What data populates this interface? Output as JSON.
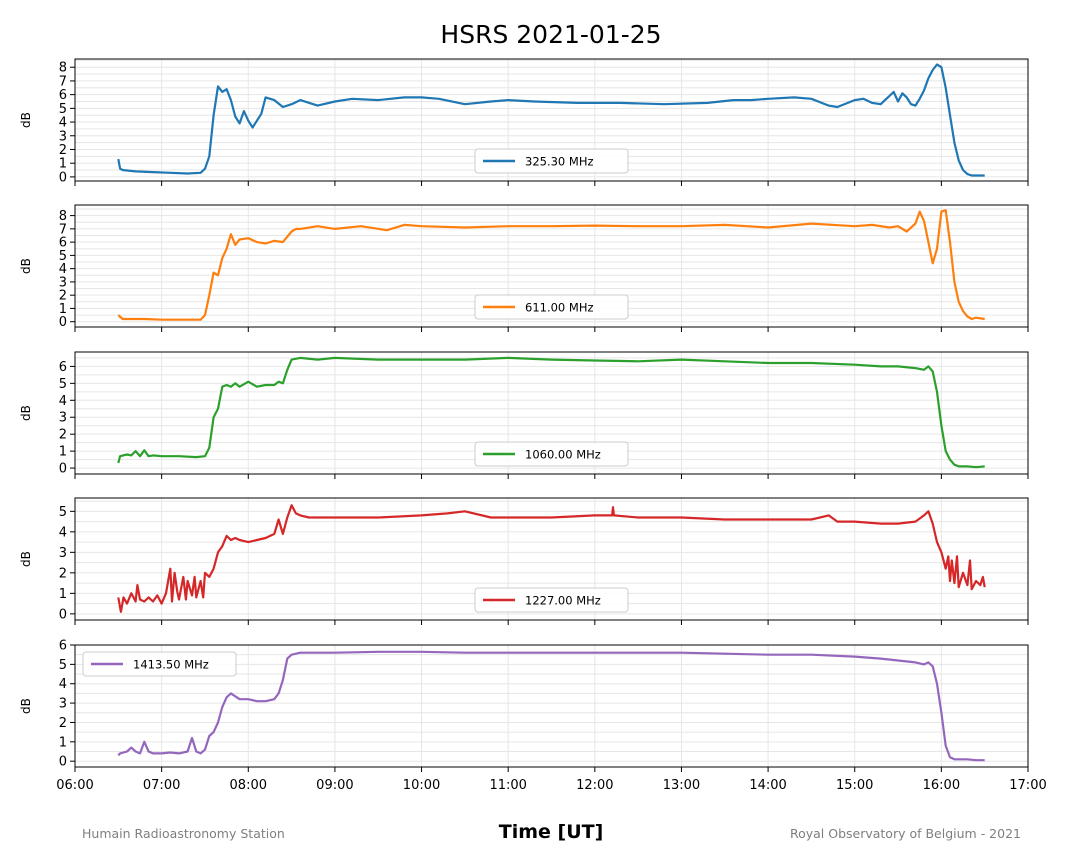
{
  "chart_data": {
    "type": "line",
    "title": "HSRS 2021-01-25",
    "xlabel": "Time [UT]",
    "ylabel": "dB",
    "x_ticks": [
      "06:00",
      "07:00",
      "08:00",
      "09:00",
      "10:00",
      "11:00",
      "12:00",
      "13:00",
      "14:00",
      "15:00",
      "16:00",
      "17:00"
    ],
    "xlim_hours": [
      6,
      17
    ],
    "grid": true,
    "footer_left": "Humain Radioastronomy Station",
    "footer_right": "Royal Observatory of Belgium - 2021",
    "panels": [
      {
        "name": "325.30 MHz",
        "color": "#1f77b4",
        "legend_position": "lower-center",
        "ylim": [
          -0.3,
          8.6
        ],
        "yticks": [
          0,
          1,
          2,
          3,
          4,
          5,
          6,
          7,
          8
        ],
        "x": [
          6.5,
          6.52,
          6.55,
          6.7,
          6.9,
          7.1,
          7.3,
          7.45,
          7.5,
          7.55,
          7.6,
          7.65,
          7.7,
          7.75,
          7.8,
          7.85,
          7.9,
          7.95,
          8.0,
          8.05,
          8.15,
          8.2,
          8.3,
          8.4,
          8.5,
          8.6,
          8.8,
          9.0,
          9.2,
          9.5,
          9.8,
          10.0,
          10.2,
          10.5,
          10.8,
          11.0,
          11.3,
          11.8,
          12.3,
          12.8,
          13.3,
          13.6,
          13.8,
          14.0,
          14.3,
          14.5,
          14.7,
          14.8,
          15.0,
          15.1,
          15.2,
          15.3,
          15.35,
          15.4,
          15.45,
          15.5,
          15.55,
          15.6,
          15.65,
          15.7,
          15.75,
          15.8,
          15.85,
          15.9,
          15.95,
          16.0,
          16.05,
          16.1,
          16.15,
          16.2,
          16.25,
          16.3,
          16.35,
          16.4,
          16.5
        ],
        "y": [
          1.3,
          0.6,
          0.5,
          0.4,
          0.35,
          0.3,
          0.25,
          0.3,
          0.6,
          1.5,
          4.5,
          6.6,
          6.2,
          6.4,
          5.6,
          4.4,
          3.9,
          4.8,
          4.1,
          3.6,
          4.6,
          5.8,
          5.6,
          5.1,
          5.3,
          5.6,
          5.2,
          5.5,
          5.7,
          5.6,
          5.8,
          5.8,
          5.7,
          5.3,
          5.5,
          5.6,
          5.5,
          5.4,
          5.4,
          5.3,
          5.4,
          5.6,
          5.6,
          5.7,
          5.8,
          5.7,
          5.2,
          5.1,
          5.6,
          5.7,
          5.4,
          5.3,
          5.6,
          5.9,
          6.2,
          5.5,
          6.1,
          5.8,
          5.3,
          5.2,
          5.7,
          6.3,
          7.2,
          7.8,
          8.2,
          8.0,
          6.5,
          4.5,
          2.5,
          1.2,
          0.5,
          0.2,
          0.1,
          0.1,
          0.1
        ]
      },
      {
        "name": "611.00 MHz",
        "color": "#ff7f0e",
        "legend_position": "lower-center",
        "ylim": [
          -0.4,
          8.8
        ],
        "yticks": [
          0,
          1,
          2,
          3,
          4,
          5,
          6,
          7,
          8
        ],
        "x": [
          6.5,
          6.55,
          6.8,
          7.0,
          7.2,
          7.45,
          7.5,
          7.55,
          7.6,
          7.65,
          7.7,
          7.75,
          7.8,
          7.85,
          7.9,
          8.0,
          8.1,
          8.2,
          8.3,
          8.4,
          8.5,
          8.55,
          8.6,
          8.8,
          9.0,
          9.3,
          9.6,
          9.8,
          10.0,
          10.5,
          11.0,
          11.5,
          12.0,
          12.5,
          13.0,
          13.5,
          14.0,
          14.5,
          15.0,
          15.2,
          15.4,
          15.5,
          15.6,
          15.7,
          15.75,
          15.8,
          15.85,
          15.9,
          15.95,
          16.0,
          16.05,
          16.1,
          16.15,
          16.2,
          16.25,
          16.3,
          16.35,
          16.4,
          16.5
        ],
        "y": [
          0.5,
          0.2,
          0.2,
          0.15,
          0.15,
          0.15,
          0.5,
          2.0,
          3.7,
          3.5,
          4.8,
          5.5,
          6.6,
          5.8,
          6.2,
          6.3,
          6.0,
          5.9,
          6.1,
          6.0,
          6.8,
          7.0,
          7.0,
          7.2,
          7.0,
          7.2,
          6.9,
          7.3,
          7.2,
          7.1,
          7.2,
          7.2,
          7.25,
          7.2,
          7.2,
          7.3,
          7.1,
          7.4,
          7.2,
          7.3,
          7.1,
          7.2,
          6.8,
          7.4,
          8.3,
          7.6,
          6.0,
          4.4,
          5.5,
          8.3,
          8.4,
          6.0,
          3.0,
          1.5,
          0.8,
          0.4,
          0.2,
          0.3,
          0.2
        ]
      },
      {
        "name": "1060.00 MHz",
        "color": "#2ca02c",
        "legend_position": "lower-center",
        "ylim": [
          -0.35,
          6.85
        ],
        "yticks": [
          0,
          1,
          2,
          3,
          4,
          5,
          6
        ],
        "x": [
          6.5,
          6.52,
          6.6,
          6.65,
          6.7,
          6.75,
          6.8,
          6.85,
          6.9,
          7.0,
          7.2,
          7.4,
          7.5,
          7.55,
          7.6,
          7.65,
          7.7,
          7.75,
          7.8,
          7.85,
          7.9,
          8.0,
          8.1,
          8.2,
          8.3,
          8.35,
          8.4,
          8.45,
          8.5,
          8.6,
          8.8,
          9.0,
          9.5,
          10.0,
          10.5,
          11.0,
          11.5,
          12.0,
          12.5,
          13.0,
          13.5,
          14.0,
          14.5,
          15.0,
          15.3,
          15.5,
          15.7,
          15.8,
          15.85,
          15.9,
          15.95,
          16.0,
          16.05,
          16.1,
          16.15,
          16.2,
          16.3,
          16.4,
          16.5
        ],
        "y": [
          0.3,
          0.7,
          0.8,
          0.75,
          1.0,
          0.7,
          1.05,
          0.7,
          0.75,
          0.7,
          0.7,
          0.65,
          0.7,
          1.2,
          3.0,
          3.5,
          4.8,
          4.9,
          4.8,
          5.0,
          4.8,
          5.1,
          4.8,
          4.9,
          4.9,
          5.1,
          5.0,
          5.8,
          6.4,
          6.5,
          6.4,
          6.5,
          6.4,
          6.4,
          6.4,
          6.5,
          6.4,
          6.35,
          6.3,
          6.4,
          6.3,
          6.2,
          6.2,
          6.1,
          6.0,
          6.0,
          5.9,
          5.8,
          6.0,
          5.7,
          4.5,
          2.5,
          1.0,
          0.5,
          0.2,
          0.1,
          0.1,
          0.05,
          0.1
        ]
      },
      {
        "name": "1227.00 MHz",
        "color": "#d62728",
        "legend_position": "lower-center",
        "ylim": [
          -0.3,
          5.65
        ],
        "yticks": [
          0,
          1,
          2,
          3,
          4,
          5
        ],
        "x": [
          6.5,
          6.53,
          6.56,
          6.6,
          6.65,
          6.7,
          6.72,
          6.75,
          6.8,
          6.85,
          6.9,
          6.95,
          7.0,
          7.05,
          7.1,
          7.12,
          7.15,
          7.18,
          7.2,
          7.25,
          7.28,
          7.3,
          7.35,
          7.38,
          7.4,
          7.45,
          7.48,
          7.5,
          7.55,
          7.6,
          7.65,
          7.7,
          7.75,
          7.8,
          7.85,
          7.9,
          8.0,
          8.1,
          8.2,
          8.3,
          8.35,
          8.4,
          8.45,
          8.5,
          8.55,
          8.6,
          8.7,
          8.9,
          9.2,
          9.5,
          10.0,
          10.3,
          10.5,
          10.8,
          11.0,
          11.5,
          12.0,
          12.2,
          12.21,
          12.22,
          12.5,
          13.0,
          13.5,
          14.0,
          14.5,
          14.7,
          14.8,
          15.0,
          15.3,
          15.5,
          15.7,
          15.8,
          15.85,
          15.9,
          15.95,
          16.0,
          16.05,
          16.08,
          16.1,
          16.12,
          16.15,
          16.18,
          16.2,
          16.25,
          16.3,
          16.33,
          16.35,
          16.4,
          16.45,
          16.48,
          16.5
        ],
        "y": [
          0.8,
          0.1,
          0.8,
          0.5,
          1.0,
          0.6,
          1.4,
          0.7,
          0.6,
          0.8,
          0.6,
          0.9,
          0.5,
          1.0,
          2.2,
          0.6,
          2.0,
          1.1,
          0.7,
          1.8,
          0.7,
          1.6,
          0.9,
          1.8,
          0.8,
          1.6,
          0.8,
          2.0,
          1.8,
          2.2,
          3.0,
          3.3,
          3.8,
          3.6,
          3.7,
          3.6,
          3.5,
          3.6,
          3.7,
          3.9,
          4.6,
          3.9,
          4.7,
          5.3,
          4.9,
          4.8,
          4.7,
          4.7,
          4.7,
          4.7,
          4.8,
          4.9,
          5.0,
          4.7,
          4.7,
          4.7,
          4.8,
          4.8,
          5.2,
          4.8,
          4.7,
          4.7,
          4.6,
          4.6,
          4.6,
          4.8,
          4.5,
          4.5,
          4.4,
          4.4,
          4.5,
          4.8,
          5.0,
          4.4,
          3.5,
          3.0,
          2.2,
          2.8,
          1.6,
          2.6,
          1.5,
          2.8,
          1.3,
          2.0,
          1.4,
          2.6,
          1.2,
          1.6,
          1.4,
          1.8,
          1.3
        ]
      },
      {
        "name": "1413.50 MHz",
        "color": "#9467bd",
        "legend_position": "upper-left",
        "ylim": [
          -0.3,
          6.0
        ],
        "yticks": [
          0,
          1,
          2,
          3,
          4,
          5,
          6
        ],
        "x": [
          6.5,
          6.52,
          6.6,
          6.65,
          6.7,
          6.75,
          6.8,
          6.85,
          6.9,
          7.0,
          7.1,
          7.2,
          7.3,
          7.35,
          7.4,
          7.45,
          7.5,
          7.55,
          7.6,
          7.65,
          7.7,
          7.75,
          7.8,
          7.9,
          8.0,
          8.1,
          8.2,
          8.3,
          8.35,
          8.4,
          8.45,
          8.5,
          8.6,
          8.8,
          9.0,
          9.5,
          10.0,
          10.5,
          11.0,
          11.5,
          12.0,
          12.5,
          13.0,
          13.5,
          14.0,
          14.5,
          15.0,
          15.3,
          15.5,
          15.7,
          15.8,
          15.85,
          15.9,
          15.95,
          16.0,
          16.05,
          16.1,
          16.15,
          16.2,
          16.3,
          16.4,
          16.5
        ],
        "y": [
          0.3,
          0.4,
          0.5,
          0.7,
          0.5,
          0.4,
          1.0,
          0.5,
          0.4,
          0.4,
          0.45,
          0.4,
          0.5,
          1.2,
          0.5,
          0.4,
          0.6,
          1.3,
          1.5,
          2.0,
          2.8,
          3.3,
          3.5,
          3.2,
          3.2,
          3.1,
          3.1,
          3.2,
          3.5,
          4.2,
          5.3,
          5.5,
          5.6,
          5.6,
          5.6,
          5.65,
          5.65,
          5.6,
          5.6,
          5.6,
          5.6,
          5.6,
          5.6,
          5.55,
          5.5,
          5.5,
          5.4,
          5.3,
          5.2,
          5.1,
          5.0,
          5.1,
          4.9,
          4.0,
          2.5,
          0.8,
          0.2,
          0.1,
          0.1,
          0.1,
          0.05,
          0.05
        ]
      }
    ]
  }
}
